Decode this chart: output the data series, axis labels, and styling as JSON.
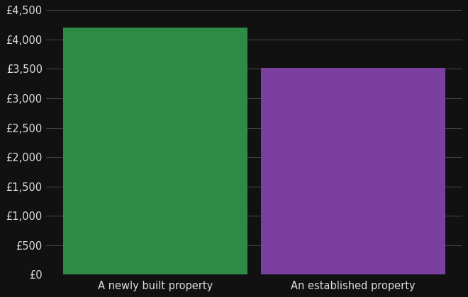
{
  "categories": [
    "A newly built property",
    "An established property"
  ],
  "values": [
    4200,
    3519
  ],
  "bar_colors": [
    "#2e8b45",
    "#7b3fa0"
  ],
  "background_color": "#111111",
  "text_color": "#dddddd",
  "grid_color": "#555555",
  "ylim": [
    0,
    4500
  ],
  "ytick_step": 500,
  "bar_width": 0.28,
  "tick_label_fontsize": 10.5,
  "xlabel_fontsize": 10.5
}
